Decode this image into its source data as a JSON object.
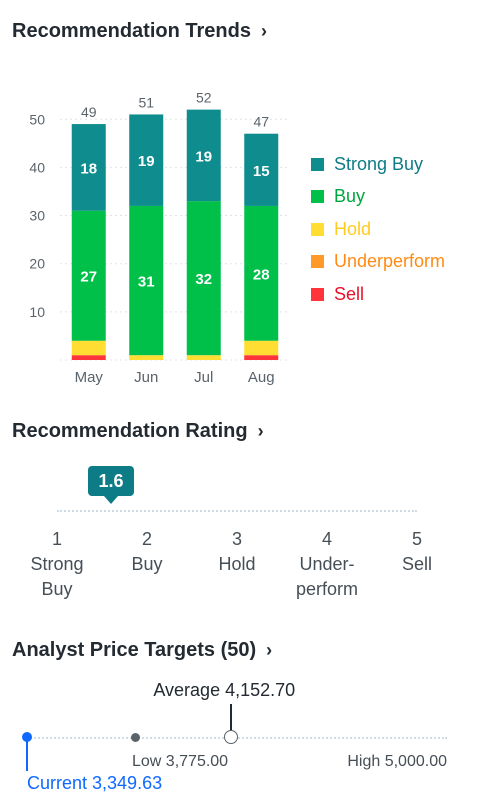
{
  "trends": {
    "title": "Recommendation Trends",
    "chevron": "›"
  },
  "chart_data": {
    "type": "bar",
    "stacked": true,
    "categories": [
      "May",
      "Jun",
      "Jul",
      "Aug"
    ],
    "totals": [
      49,
      51,
      52,
      47
    ],
    "ylim": [
      0,
      54
    ],
    "yticks": [
      10,
      20,
      30,
      40,
      50
    ],
    "grid": true,
    "legend_position": "right",
    "series": [
      {
        "name": "Sell",
        "color": "#ff333a",
        "values": [
          1,
          0,
          0,
          1
        ],
        "label_visible": false
      },
      {
        "name": "Underperform",
        "color": "#ff9a2a",
        "values": [
          0,
          0,
          0,
          0
        ],
        "label_visible": false
      },
      {
        "name": "Hold",
        "color": "#ffdd33",
        "values": [
          3,
          1,
          1,
          3
        ],
        "label_visible": false
      },
      {
        "name": "Buy",
        "color": "#00c04a",
        "values": [
          27,
          31,
          32,
          28
        ],
        "label_visible": true
      },
      {
        "name": "Strong Buy",
        "color": "#0e8c8e",
        "values": [
          18,
          19,
          19,
          15
        ],
        "label_visible": true
      }
    ]
  },
  "legend": [
    {
      "label": "Strong Buy",
      "color": "#0e8c8e",
      "text_color": "#0e7c86"
    },
    {
      "label": "Buy",
      "color": "#00c04a",
      "text_color": "#00a641"
    },
    {
      "label": "Hold",
      "color": "#ffdd33",
      "text_color": "#ffcb20"
    },
    {
      "label": "Underperform",
      "color": "#ff9a2a",
      "text_color": "#ff8b12"
    },
    {
      "label": "Sell",
      "color": "#ff333a",
      "text_color": "#eb0f29"
    }
  ],
  "rating": {
    "title": "Recommendation Rating",
    "chevron": "›",
    "value": 1.6,
    "value_text": "1.6",
    "scale": [
      {
        "num": "1",
        "line1": "Strong",
        "line2": "Buy"
      },
      {
        "num": "2",
        "line1": "Buy",
        "line2": ""
      },
      {
        "num": "3",
        "line1": "Hold",
        "line2": ""
      },
      {
        "num": "4",
        "line1": "Under-",
        "line2": "perform"
      },
      {
        "num": "5",
        "line1": "Sell",
        "line2": ""
      }
    ]
  },
  "price_targets": {
    "title": "Analyst Price Targets (50)",
    "chevron": "›",
    "current": 3349.63,
    "low": 3775.0,
    "average": 4152.7,
    "high": 5000.0,
    "average_text": "Average 4,152.70",
    "low_text": "Low 3,775.00",
    "high_text": "High 5,000.00",
    "current_text": "Current 3,349.63"
  }
}
